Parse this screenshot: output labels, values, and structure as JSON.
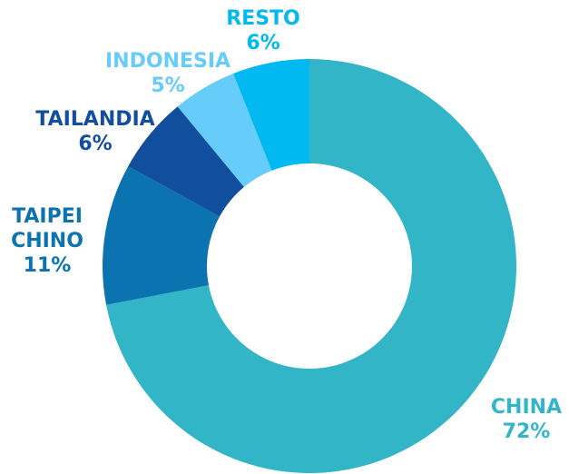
{
  "chart_data": {
    "type": "donut",
    "categories": [
      "CHINA",
      "TAIPEI CHINO",
      "TAILANDIA",
      "INDONESIA",
      "RESTO"
    ],
    "values": [
      72,
      11,
      6,
      5,
      6
    ],
    "value_labels": [
      "72%",
      "11%",
      "6%",
      "5%",
      "6%"
    ],
    "colors": [
      "#33b5c8",
      "#0a73b0",
      "#114f9e",
      "#66ccfa",
      "#00b9f0"
    ]
  }
}
